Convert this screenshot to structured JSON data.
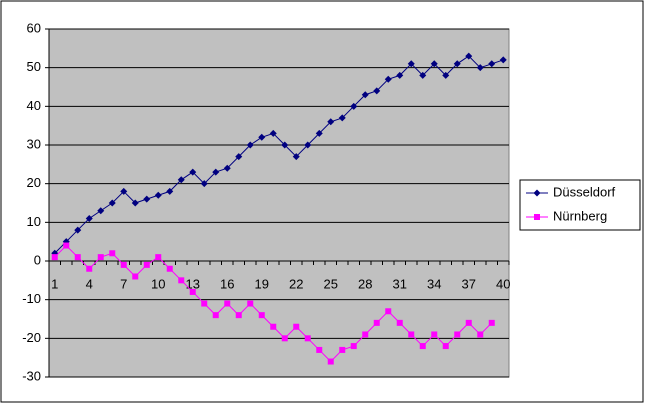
{
  "chart_data": {
    "type": "line",
    "categories": [
      1,
      null,
      null,
      4,
      null,
      null,
      7,
      null,
      null,
      10,
      null,
      null,
      13,
      null,
      null,
      16,
      null,
      null,
      19,
      null,
      null,
      22,
      null,
      null,
      25,
      null,
      null,
      28,
      null,
      null,
      31,
      null,
      null,
      34,
      null,
      null,
      37,
      null,
      null,
      40
    ],
    "series": [
      {
        "name": "Düsseldorf",
        "color": "#000080",
        "marker": "diamond",
        "values": [
          2,
          5,
          8,
          11,
          13,
          15,
          18,
          15,
          16,
          17,
          18,
          21,
          23,
          20,
          23,
          24,
          27,
          30,
          32,
          33,
          30,
          27,
          30,
          33,
          36,
          37,
          40,
          43,
          44,
          47,
          48,
          51,
          48,
          51,
          48,
          51,
          53,
          50,
          51,
          52
        ]
      },
      {
        "name": "Nürnberg",
        "color": "#ff00ff",
        "marker": "square",
        "values": [
          1,
          4,
          1,
          -2,
          1,
          2,
          -1,
          -4,
          -1,
          1,
          -2,
          -5,
          -8,
          -11,
          -14,
          -11,
          -14,
          -11,
          -14,
          -17,
          -20,
          -17,
          -20,
          -23,
          -26,
          -23,
          -22,
          -19,
          -16,
          -13,
          -16,
          -19,
          -22,
          -19,
          -22,
          -19,
          -16,
          -19,
          -16,
          null
        ]
      }
    ],
    "ylim": [
      -30,
      60
    ],
    "yticks": [
      -30,
      -20,
      -10,
      0,
      10,
      20,
      30,
      40,
      50,
      60
    ],
    "grid": true,
    "legend": "right",
    "plot_background": "#c0c0c0"
  }
}
